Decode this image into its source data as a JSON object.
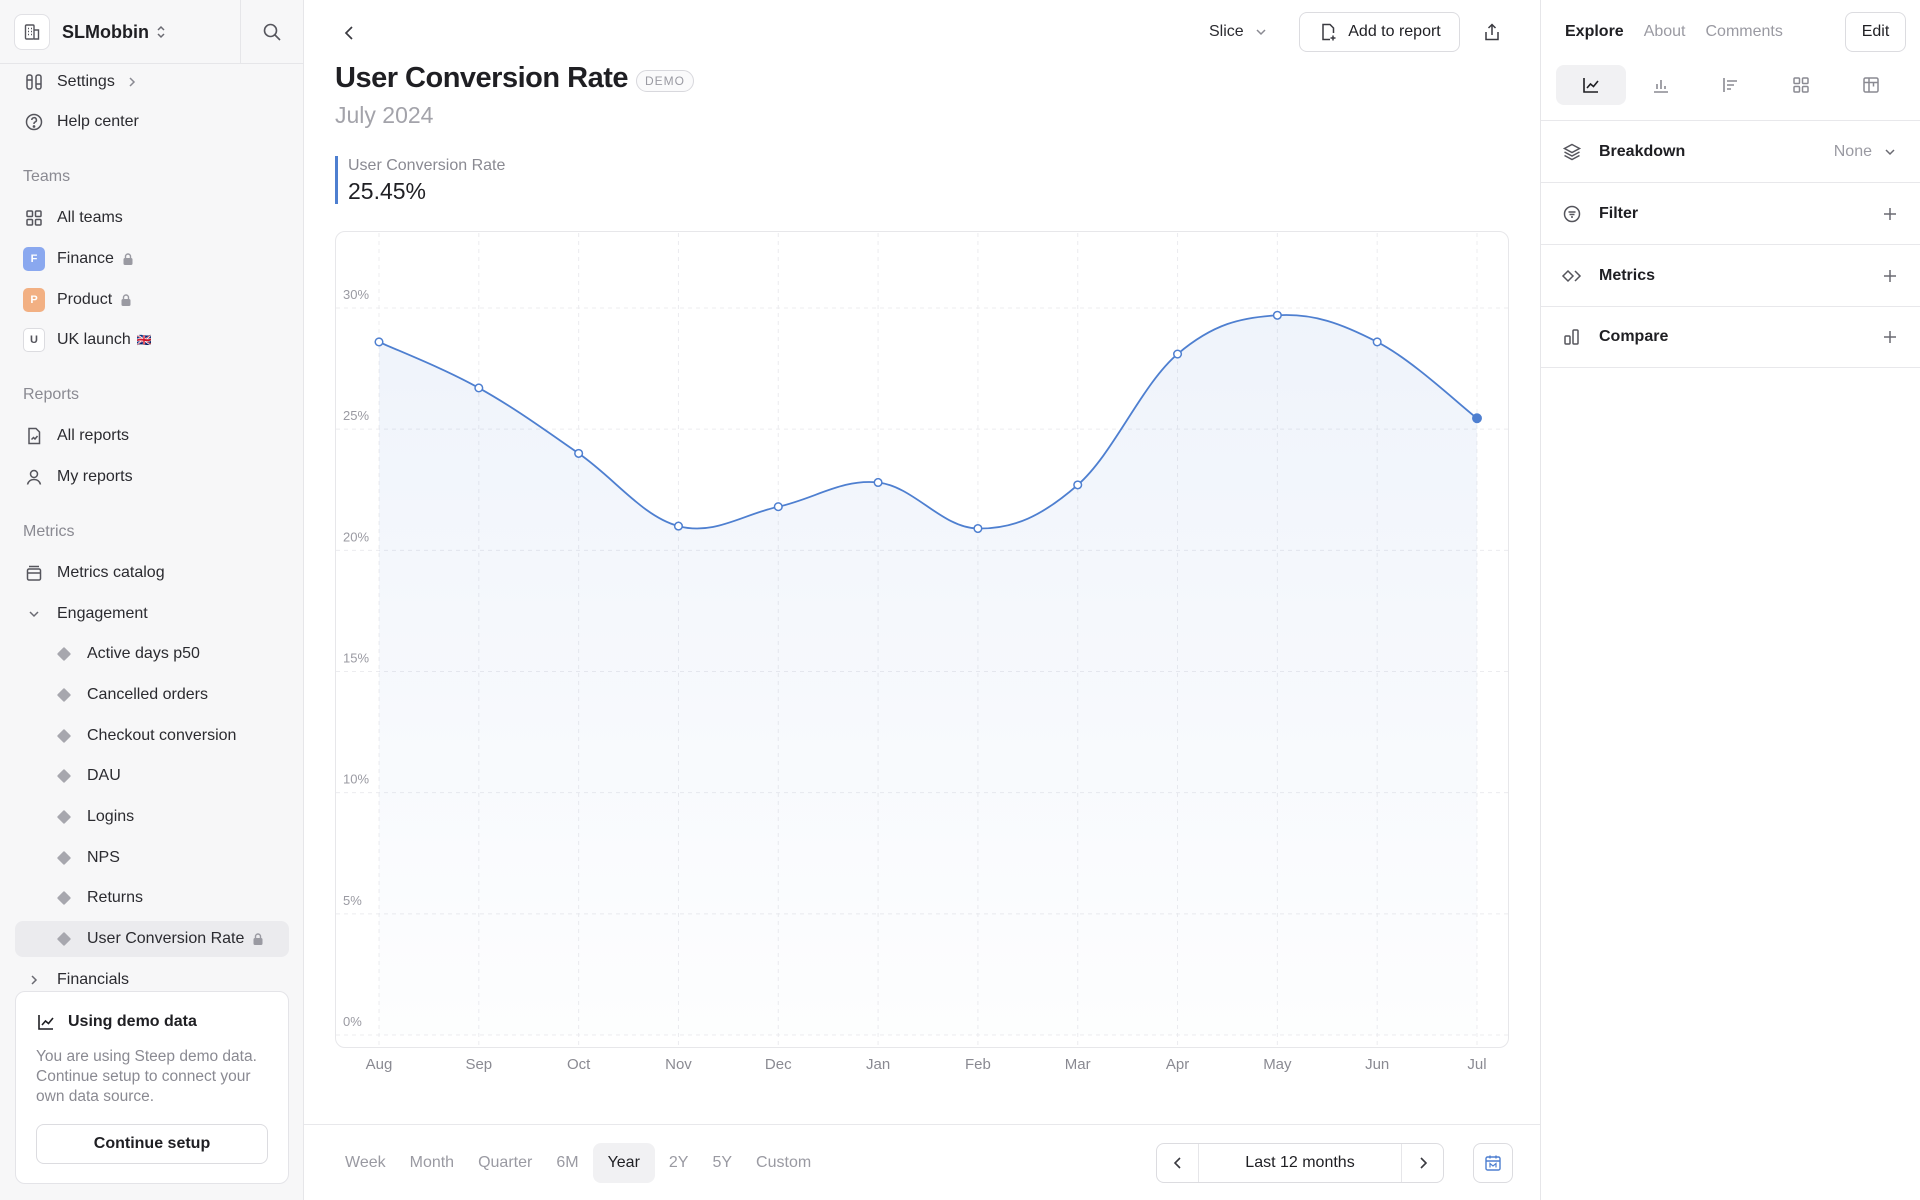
{
  "workspace": {
    "name": "SLMobbin"
  },
  "sidebar": {
    "top_items": [
      {
        "label": "Settings"
      },
      {
        "label": "Help center"
      }
    ],
    "teams_heading": "Teams",
    "teams": [
      {
        "label": "All teams"
      },
      {
        "label": "Finance",
        "badge": "F",
        "color": "#8aa8ef"
      },
      {
        "label": "Product",
        "badge": "P",
        "color": "#f2b083"
      },
      {
        "label": "UK launch",
        "badge": "U",
        "flag": "🇬🇧"
      }
    ],
    "reports_heading": "Reports",
    "reports": [
      {
        "label": "All reports"
      },
      {
        "label": "My reports"
      }
    ],
    "metrics_heading": "Metrics",
    "metrics_catalog": "Metrics catalog",
    "engagement": "Engagement",
    "engagement_items": [
      {
        "label": "Active days p50"
      },
      {
        "label": "Cancelled orders"
      },
      {
        "label": "Checkout conversion"
      },
      {
        "label": "DAU"
      },
      {
        "label": "Logins"
      },
      {
        "label": "NPS"
      },
      {
        "label": "Returns"
      },
      {
        "label": "User Conversion Rate"
      }
    ],
    "financials": "Financials"
  },
  "demo_card": {
    "title": "Using demo data",
    "text": "You are using Steep demo data. Continue setup to connect your own data source.",
    "button": "Continue setup"
  },
  "header": {
    "slice_label": "Slice",
    "add_to_report": "Add to report"
  },
  "page": {
    "title": "User Conversion Rate",
    "badge": "DEMO",
    "subtitle": "July 2024",
    "kpi_label": "User Conversion Rate",
    "kpi_value": "25.45%"
  },
  "chart_data": {
    "type": "line",
    "categories": [
      "Aug",
      "Sep",
      "Oct",
      "Nov",
      "Dec",
      "Jan",
      "Feb",
      "Mar",
      "Apr",
      "May",
      "Jun",
      "Jul"
    ],
    "series": [
      {
        "values": [
          28.6,
          26.7,
          24.0,
          21.0,
          21.8,
          22.8,
          20.9,
          22.7,
          28.1,
          29.7,
          28.6,
          25.45
        ]
      }
    ],
    "y_ticks": [
      "0%",
      "5%",
      "10%",
      "15%",
      "20%",
      "25%",
      "30%"
    ],
    "ylim": [
      0,
      30
    ],
    "grid": true,
    "color": "#4e7fd0"
  },
  "time_range": {
    "tabs": [
      "Week",
      "Month",
      "Quarter",
      "6M",
      "Year",
      "2Y",
      "5Y",
      "Custom"
    ],
    "active": "Year",
    "period_label": "Last 12 months"
  },
  "right_panel": {
    "tabs": [
      "Explore",
      "About",
      "Comments"
    ],
    "active_tab": "Explore",
    "edit": "Edit",
    "viz_types": [
      "line-chart-icon",
      "bar-chart-icon",
      "horizontal-bar-icon",
      "grid-icon",
      "table-icon"
    ],
    "sections": [
      {
        "label": "Breakdown",
        "value": "None"
      },
      {
        "label": "Filter"
      },
      {
        "label": "Metrics"
      },
      {
        "label": "Compare"
      }
    ]
  }
}
